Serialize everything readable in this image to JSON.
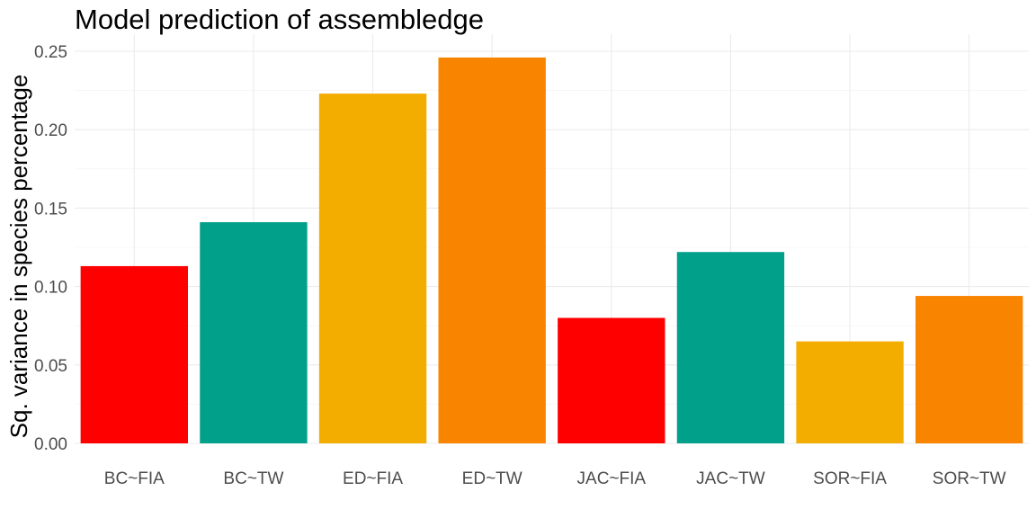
{
  "chart_data": {
    "type": "bar",
    "title": "Model prediction of assembledge",
    "xlabel": "",
    "ylabel": "Sq. variance in species percentage",
    "categories": [
      "BC~FIA",
      "BC~TW",
      "ED~FIA",
      "ED~TW",
      "JAC~FIA",
      "JAC~TW",
      "SOR~FIA",
      "SOR~TW"
    ],
    "values": [
      0.113,
      0.141,
      0.223,
      0.246,
      0.08,
      0.122,
      0.065,
      0.094
    ],
    "bar_colors": [
      "#FF0000",
      "#00A08A",
      "#F2AD00",
      "#F98400",
      "#FF0000",
      "#00A08A",
      "#F2AD00",
      "#F98400"
    ],
    "ylim": [
      0,
      0.25
    ],
    "yticks": [
      0.0,
      0.05,
      0.1,
      0.15,
      0.2,
      0.25
    ],
    "ytick_labels": [
      "0.00",
      "0.05",
      "0.10",
      "0.15",
      "0.20",
      "0.25"
    ],
    "grid": true,
    "legend": false
  }
}
